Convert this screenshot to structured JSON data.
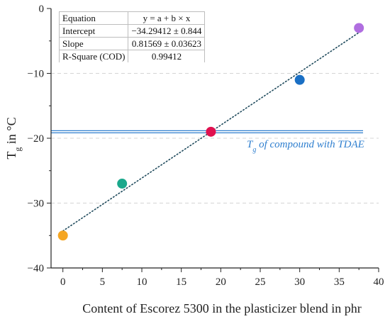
{
  "chart_data": {
    "type": "scatter",
    "xlabel": "Content of Escorez 5300 in the plasticizer blend in phr",
    "ylabel": {
      "main": "T",
      "sub": "g",
      "rest": " in °C"
    },
    "xlim": [
      -1.5,
      40
    ],
    "ylim": [
      -40,
      0
    ],
    "x_ticks": [
      "0",
      "5",
      "10",
      "15",
      "20",
      "25",
      "30",
      "35",
      "40"
    ],
    "y_ticks": [
      "0",
      "−10",
      "−20",
      "−30",
      "−40"
    ],
    "grid": "horizontal dashed",
    "points": [
      {
        "x": 0,
        "y": -35,
        "color": "#f5a623"
      },
      {
        "x": 7.5,
        "y": -27,
        "color": "#1aa88c"
      },
      {
        "x": 18.75,
        "y": -19,
        "color": "#e0114f"
      },
      {
        "x": 30,
        "y": -11,
        "color": "#1a6fc4"
      },
      {
        "x": 37.5,
        "y": -3,
        "color": "#b06ee0"
      }
    ],
    "fit_line": {
      "intercept": -34.29412,
      "slope": 0.81569,
      "x_from": 0,
      "x_to": 37.5,
      "color": "#1f4a5c"
    },
    "reference_line": {
      "y": -19,
      "color": "#2f7fcf",
      "label_main": "T",
      "label_sub": "g",
      "label_rest": " of compound with TDAE"
    },
    "fit_table": [
      [
        "Equation",
        "y = a + b × x"
      ],
      [
        "Intercept",
        "−34.29412 ± 0.844"
      ],
      [
        "Slope",
        "0.81569 ± 0.03623"
      ],
      [
        "R-Square (COD)",
        "0.99412"
      ]
    ]
  }
}
